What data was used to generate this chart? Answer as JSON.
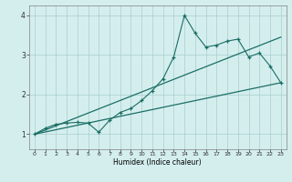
{
  "xlabel": "Humidex (Indice chaleur)",
  "ylabel": "",
  "background_color": "#d4eeee",
  "line_color": "#1a6e64",
  "grid_color": "#aacece",
  "xlim": [
    -0.5,
    23.5
  ],
  "ylim": [
    0.62,
    4.25
  ],
  "xticks": [
    0,
    1,
    2,
    3,
    4,
    5,
    6,
    7,
    8,
    9,
    10,
    11,
    12,
    13,
    14,
    15,
    16,
    17,
    18,
    19,
    20,
    21,
    22,
    23
  ],
  "yticks": [
    1,
    2,
    3,
    4
  ],
  "series1_x": [
    0,
    1,
    2,
    3,
    4,
    5,
    6,
    7,
    8,
    9,
    10,
    11,
    12,
    13,
    14,
    15,
    16,
    17,
    18,
    19,
    20,
    21,
    22,
    23
  ],
  "series1_y": [
    1.0,
    1.15,
    1.25,
    1.28,
    1.3,
    1.28,
    1.05,
    1.35,
    1.55,
    1.65,
    1.85,
    2.1,
    2.4,
    2.95,
    4.0,
    3.55,
    3.2,
    3.25,
    3.35,
    3.4,
    2.95,
    3.05,
    2.72,
    2.3
  ],
  "series2_x": [
    0,
    23
  ],
  "series2_y": [
    1.0,
    2.3
  ],
  "series3_x": [
    0,
    23
  ],
  "series3_y": [
    1.0,
    3.45
  ]
}
